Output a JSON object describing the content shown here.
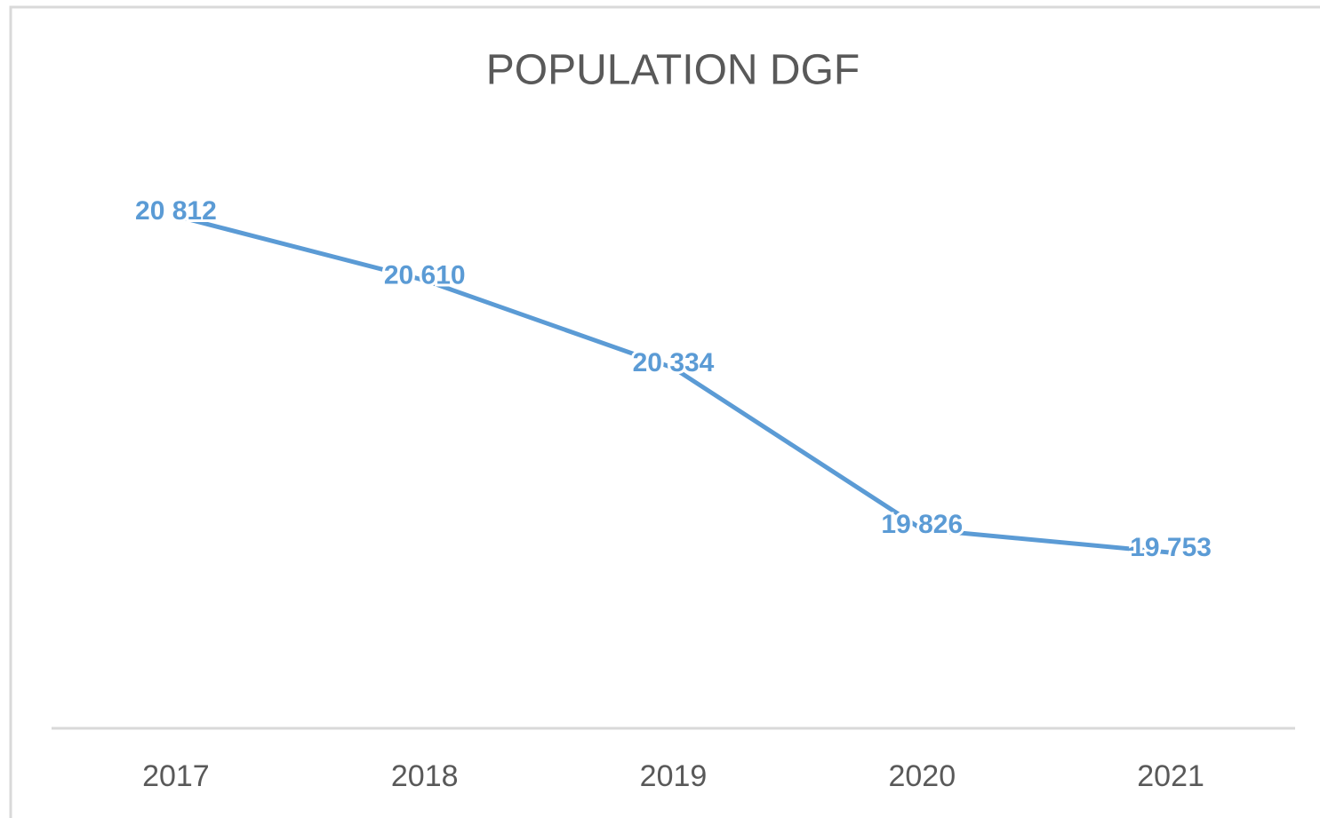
{
  "chart_data": {
    "type": "line",
    "title": "POPULATION DGF",
    "categories": [
      "2017",
      "2018",
      "2019",
      "2020",
      "2021"
    ],
    "values": [
      20812,
      20610,
      20334,
      19826,
      19753
    ],
    "value_labels": [
      "20 812",
      "20 610",
      "20 334",
      "19 826",
      "19 753"
    ],
    "color": "#5b9bd5",
    "ylim": [
      19200,
      21000
    ],
    "grid": false
  }
}
